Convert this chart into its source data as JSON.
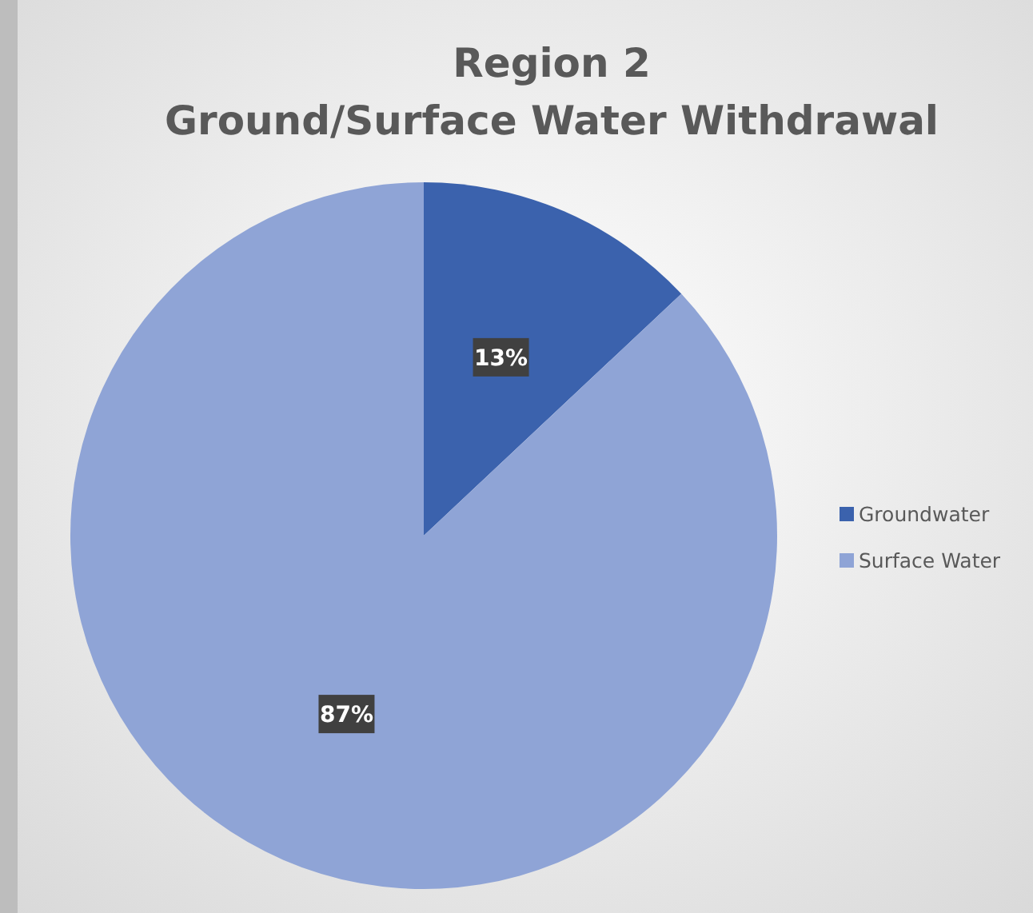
{
  "chart_data": {
    "type": "pie",
    "title": "Region 2\nGround/Surface Water Withdrawal",
    "categories": [
      "Groundwater",
      "Surface Water"
    ],
    "values": [
      13,
      87
    ],
    "colors": [
      "#3b62ad",
      "#8fa4d6"
    ],
    "value_labels": [
      "13%",
      "87%"
    ],
    "legend": "right"
  }
}
